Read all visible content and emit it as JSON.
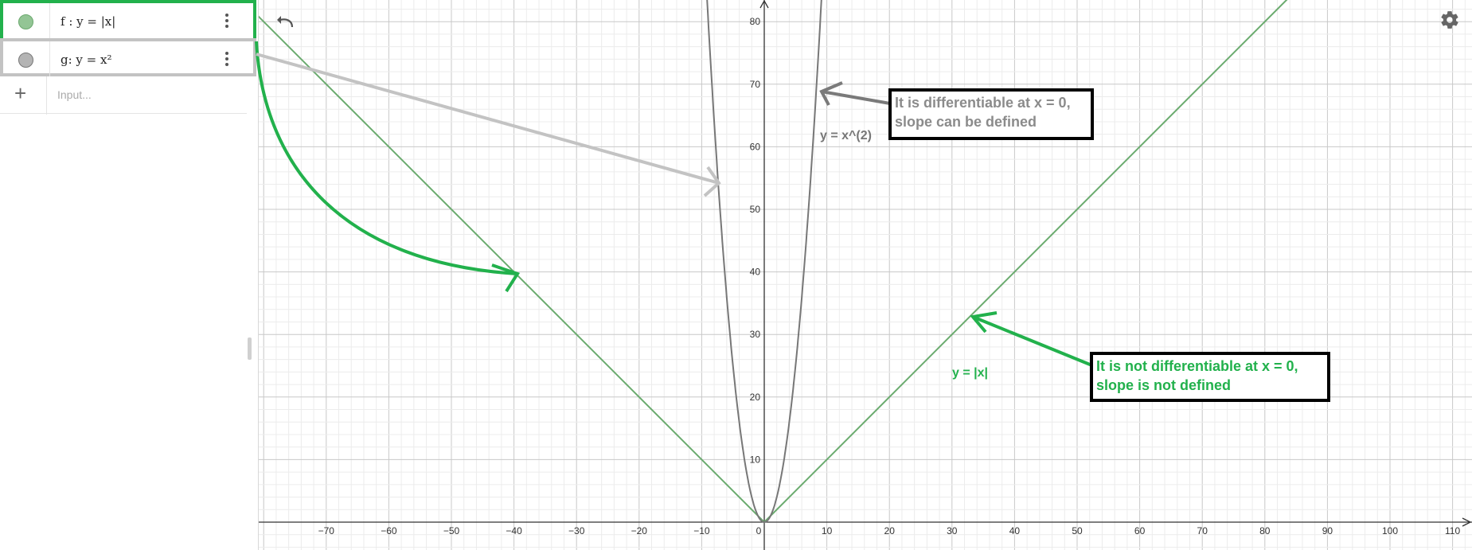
{
  "algebra": {
    "items": [
      {
        "label": "f : y = |x|",
        "color": "#93c595"
      },
      {
        "label": "g: y = x²",
        "color": "#b4b4b4"
      }
    ],
    "input_placeholder": "Input...",
    "add_symbol": "+"
  },
  "graph": {
    "x_ticks": [
      "−70",
      "−60",
      "−50",
      "−40",
      "−30",
      "−20",
      "−10",
      "0",
      "10",
      "20",
      "30",
      "40",
      "50",
      "60",
      "70",
      "80",
      "90",
      "100",
      "110"
    ],
    "y_ticks": [
      "10",
      "20",
      "30",
      "40",
      "50",
      "60",
      "70",
      "80"
    ],
    "labels": {
      "g_curve": "y = x^(2)",
      "f_curve": "y = |x|"
    },
    "colors": {
      "f": "#6aab6e",
      "g": "#777777",
      "green_arrow": "#22b14c",
      "gray_arrow": "#c3c3c3",
      "dark_arrow": "#7a7a7a"
    }
  },
  "annotations": {
    "g_note_line1": "It is differentiable at x = 0,",
    "g_note_line2": "slope can be defined",
    "f_note_line1": "It is not differentiable at x = 0,",
    "f_note_line2": "slope is not defined"
  }
}
